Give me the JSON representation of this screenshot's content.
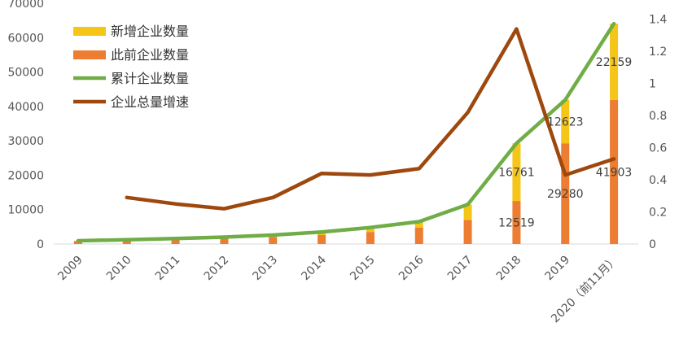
{
  "chart_data": {
    "type": "bar",
    "stacked": true,
    "categories": [
      "2009",
      "2010",
      "2011",
      "2012",
      "2013",
      "2014",
      "2015",
      "2016",
      "2017",
      "2018",
      "2019",
      "2020（前11月）"
    ],
    "series": [
      {
        "name": "新增企业数量",
        "kind": "bar",
        "axis": "left",
        "color": "#F5C518",
        "values": [
          150,
          300,
          350,
          400,
          600,
          900,
          1300,
          1700,
          4500,
          16761,
          12623,
          22159
        ]
      },
      {
        "name": "此前企业数量",
        "kind": "bar",
        "axis": "left",
        "color": "#ED7D31",
        "values": [
          800,
          950,
          1250,
          1600,
          2000,
          2600,
          3500,
          4800,
          7000,
          12519,
          29280,
          41903
        ]
      },
      {
        "name": "累计企业数量",
        "kind": "line",
        "axis": "left",
        "color": "#70AD47",
        "values": [
          950,
          1250,
          1600,
          2000,
          2600,
          3500,
          4800,
          6500,
          11500,
          29280,
          41903,
          64062
        ]
      },
      {
        "name": "企业总量增速",
        "kind": "line",
        "axis": "right",
        "color": "#9E480E",
        "values": [
          null,
          0.29,
          0.25,
          0.22,
          0.29,
          0.44,
          0.43,
          0.47,
          0.82,
          1.34,
          0.43,
          0.53
        ]
      }
    ],
    "data_labels": [
      {
        "category": "2018",
        "series": "新增企业数量",
        "text": "16761"
      },
      {
        "category": "2018",
        "series": "此前企业数量",
        "text": "12519"
      },
      {
        "category": "2019",
        "series": "新增企业数量",
        "text": "12623"
      },
      {
        "category": "2019",
        "series": "此前企业数量",
        "text": "29280"
      },
      {
        "category": "2020（前11月）",
        "series": "新增企业数量",
        "text": "22159"
      },
      {
        "category": "2020（前11月）",
        "series": "此前企业数量",
        "text": "41903"
      }
    ],
    "y_left": {
      "min": 0,
      "max": 70000,
      "ticks": [
        "0",
        "10000",
        "20000",
        "30000",
        "40000",
        "50000",
        "60000",
        "70000"
      ]
    },
    "y_right": {
      "min": 0,
      "max": 1.5,
      "ticks": [
        "0",
        "0.2",
        "0.4",
        "0.6",
        "0.8",
        "1",
        "1.2",
        "1.4"
      ]
    },
    "legend": {
      "position": "top-left"
    },
    "grid": false
  }
}
